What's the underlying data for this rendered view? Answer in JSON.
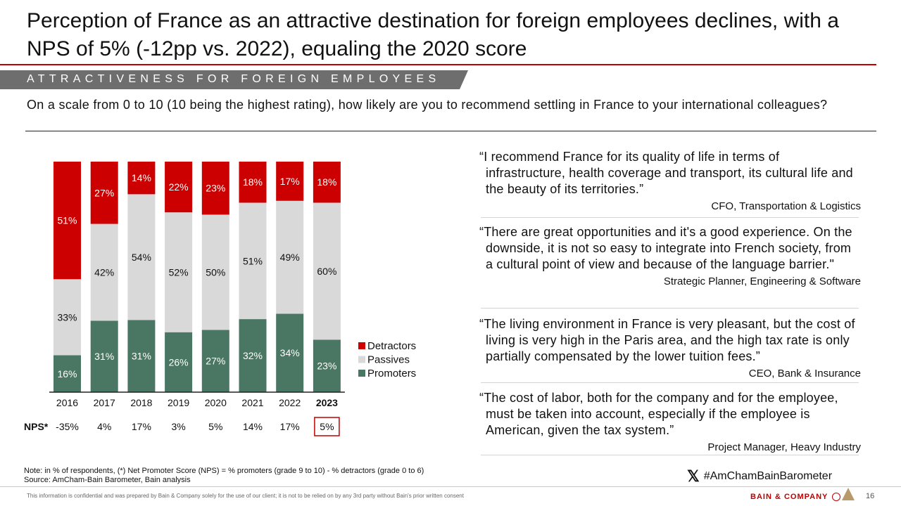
{
  "title": "Perception of France as an attractive destination for foreign employees declines, with a NPS of 5% (-12pp vs. 2022), equaling the 2020 score",
  "banner": "ATTRACTIVENESS FOR FOREIGN EMPLOYEES",
  "question": "On a scale from 0 to 10 (10 being the highest rating), how likely are you to recommend settling in France to your international colleagues?",
  "chart_data": {
    "type": "bar",
    "stacked": true,
    "normalized": true,
    "categories": [
      "2016",
      "2017",
      "2018",
      "2019",
      "2020",
      "2021",
      "2022",
      "2023"
    ],
    "series": [
      {
        "name": "Promoters",
        "values": [
          16,
          31,
          31,
          26,
          27,
          32,
          34,
          23
        ],
        "color": "#4a7763"
      },
      {
        "name": "Passives",
        "values": [
          33,
          42,
          54,
          52,
          50,
          51,
          49,
          60
        ],
        "color": "#d9d9d9"
      },
      {
        "name": "Detractors",
        "values": [
          51,
          27,
          14,
          22,
          23,
          18,
          17,
          18
        ],
        "color": "#cc0000"
      }
    ],
    "legend_order": [
      "Detractors",
      "Passives",
      "Promoters"
    ],
    "legend_position": "right-bottom",
    "highlight_category": "2023",
    "nps_label": "NPS*",
    "nps_values": [
      "-35%",
      "4%",
      "17%",
      "3%",
      "5%",
      "14%",
      "17%",
      "5%"
    ],
    "highlight_nps_index": 7,
    "value_suffix": "%"
  },
  "quotes": [
    {
      "text": "“I recommend France for its quality of life in terms of infrastructure, health coverage and transport, its cultural life and the beauty of its territories.”",
      "author": "CFO, Transportation & Logistics"
    },
    {
      "text": "“There are great opportunities and it's a good experience. On the downside, it is not so easy to integrate into French society, from a cultural point of view and because of the language barrier.\"",
      "author": "Strategic Planner, Engineering & Software"
    },
    {
      "text": "“The living environment in France is very pleasant, but the cost of living is very high in the Paris area, and the high tax rate is only partially compensated by the lower tuition fees.”",
      "author": "CEO, Bank & Insurance"
    },
    {
      "text": "“The cost of labor, both for the company and for the employee, must be taken into account, especially if the employee is American, given the tax system.”",
      "author": "Project Manager, Heavy Industry"
    }
  ],
  "note_line1": "Note: in % of respondents, (*) Net Promoter Score (NPS) = % promoters (grade 9 to 10) - % detractors (grade 0 to 6)",
  "note_line2": "Source: AmCham-Bain Barometer, Bain analysis",
  "hashtag": "#AmChamBainBarometer",
  "confidential": "This information is confidential and was prepared by Bain & Company solely for the use of our client; it is not to be relied on by any 3rd party without Bain's prior written consent",
  "brand": "BAIN & COMPANY",
  "page_number": "16"
}
